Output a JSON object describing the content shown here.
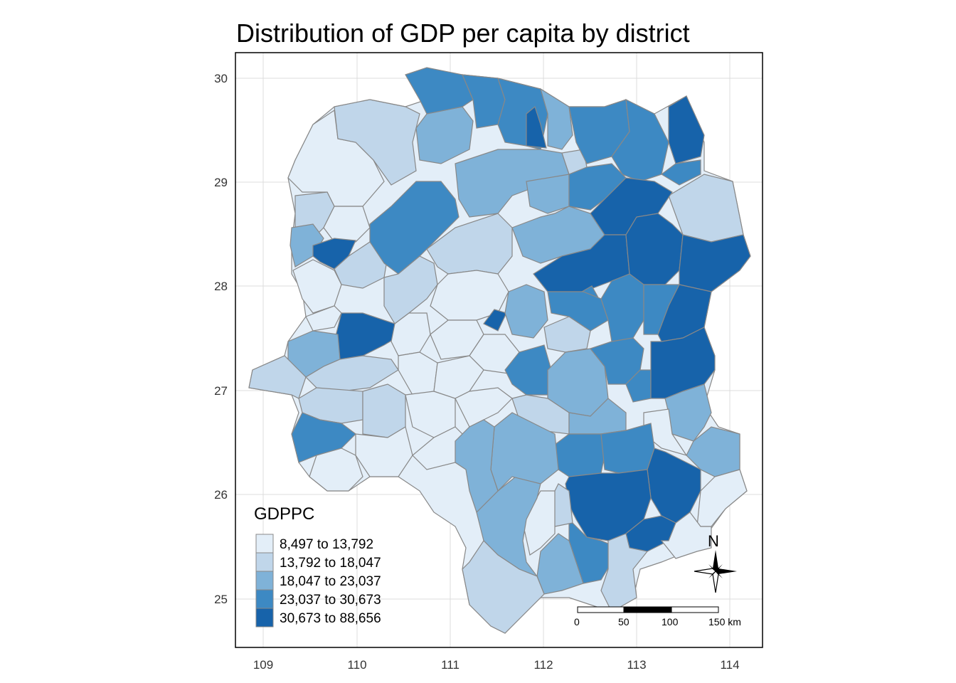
{
  "map": {
    "title": "Distribution of GDP per capita by district",
    "x_ticks": [
      "109",
      "110",
      "111",
      "112",
      "113",
      "114"
    ],
    "y_ticks": [
      "25",
      "26",
      "27",
      "28",
      "29",
      "30"
    ],
    "legend": {
      "title": "GDPPC",
      "classes": [
        {
          "label": "8,497 to 13,792",
          "color": "#e3eef8"
        },
        {
          "label": "13,792 to 18,047",
          "color": "#c0d6ea"
        },
        {
          "label": "18,047 to 23,037",
          "color": "#7fb2d8"
        },
        {
          "label": "23,037 to 30,673",
          "color": "#3d89c3"
        },
        {
          "label": "30,673 to 88,656",
          "color": "#1763aa"
        }
      ]
    },
    "scale_bar": {
      "labels": [
        "0",
        "50",
        "100",
        "150 km"
      ]
    },
    "north_arrow": {
      "label": "N"
    },
    "border_color": "#888888",
    "grid_color": "#dcdcdc"
  }
}
